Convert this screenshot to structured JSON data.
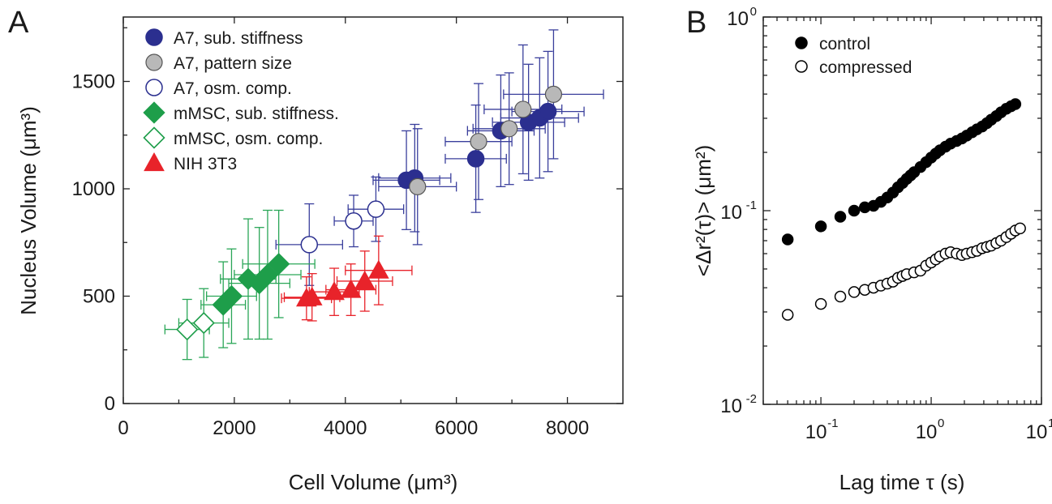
{
  "panels": {
    "a_letter": "A",
    "b_letter": "B"
  },
  "chart_data": [
    {
      "type": "scatter",
      "panel": "A",
      "xlabel": "Cell Volume (μm³)",
      "ylabel": "Nucleus Volume (μm³)",
      "xlim": [
        0,
        9000
      ],
      "ylim": [
        0,
        1800
      ],
      "xticks": [
        0,
        2000,
        4000,
        6000,
        8000
      ],
      "xtick_labels": [
        "0",
        "2000",
        "4000",
        "6000",
        "8000"
      ],
      "yticks": [
        0,
        500,
        1000,
        1500
      ],
      "ytick_labels": [
        "0",
        "500",
        "1000",
        "1500"
      ],
      "grid": false,
      "legend_position": "top-left",
      "series": [
        {
          "name": "A7, sub. stiffness",
          "marker": "circle-filled",
          "color": "#2b2f8f",
          "bar_color": "#3a3f9c",
          "points": [
            {
              "x": 5100,
              "y": 1040,
              "xerr": 600,
              "yerr": 230
            },
            {
              "x": 5250,
              "y": 1050,
              "xerr": 650,
              "yerr": 250
            },
            {
              "x": 6350,
              "y": 1140,
              "xerr": 550,
              "yerr": 250
            },
            {
              "x": 6800,
              "y": 1270,
              "xerr": 600,
              "yerr": 260
            },
            {
              "x": 7300,
              "y": 1310,
              "xerr": 650,
              "yerr": 270
            },
            {
              "x": 7500,
              "y": 1330,
              "xerr": 700,
              "yerr": 280
            },
            {
              "x": 7650,
              "y": 1360,
              "xerr": 650,
              "yerr": 280
            }
          ]
        },
        {
          "name": "A7, pattern size",
          "marker": "circle-gray",
          "color": "#b8b8b8",
          "bar_color": "#3a3f9c",
          "points": [
            {
              "x": 5300,
              "y": 1010,
              "xerr": 700,
              "yerr": 270
            },
            {
              "x": 6400,
              "y": 1220,
              "xerr": 600,
              "yerr": 270
            },
            {
              "x": 6950,
              "y": 1280,
              "xerr": 650,
              "yerr": 260
            },
            {
              "x": 7200,
              "y": 1370,
              "xerr": 700,
              "yerr": 300
            },
            {
              "x": 7750,
              "y": 1440,
              "xerr": 900,
              "yerr": 300
            }
          ]
        },
        {
          "name": "A7, osm. comp.",
          "marker": "circle-open",
          "color": "#2b2f8f",
          "bar_color": "#3a3f9c",
          "points": [
            {
              "x": 3350,
              "y": 740,
              "xerr": 600,
              "yerr": 190
            },
            {
              "x": 4150,
              "y": 850,
              "xerr": 350,
              "yerr": 120
            },
            {
              "x": 4550,
              "y": 905,
              "xerr": 500,
              "yerr": 150
            }
          ]
        },
        {
          "name": "mMSC, sub. stiffness.",
          "marker": "diamond-filled",
          "color": "#1e9e4a",
          "bar_color": "#2aa657",
          "points": [
            {
              "x": 1800,
              "y": 460,
              "xerr": 400,
              "yerr": 200
            },
            {
              "x": 1950,
              "y": 500,
              "xerr": 450,
              "yerr": 220
            },
            {
              "x": 2250,
              "y": 580,
              "xerr": 500,
              "yerr": 280
            },
            {
              "x": 2450,
              "y": 560,
              "xerr": 550,
              "yerr": 260
            },
            {
              "x": 2600,
              "y": 600,
              "xerr": 600,
              "yerr": 300
            },
            {
              "x": 2800,
              "y": 650,
              "xerr": 650,
              "yerr": 250
            }
          ]
        },
        {
          "name": "mMSC, osm. comp.",
          "marker": "diamond-open",
          "color": "#1e9e4a",
          "bar_color": "#2aa657",
          "points": [
            {
              "x": 1150,
              "y": 345,
              "xerr": 400,
              "yerr": 140
            },
            {
              "x": 1450,
              "y": 375,
              "xerr": 450,
              "yerr": 160
            }
          ]
        },
        {
          "name": "NIH 3T3",
          "marker": "triangle-filled",
          "color": "#e8232a",
          "bar_color": "#e8232a",
          "points": [
            {
              "x": 3300,
              "y": 490,
              "xerr": 450,
              "yerr": 100
            },
            {
              "x": 3400,
              "y": 495,
              "xerr": 500,
              "yerr": 110
            },
            {
              "x": 3800,
              "y": 520,
              "xerr": 450,
              "yerr": 110
            },
            {
              "x": 4100,
              "y": 530,
              "xerr": 450,
              "yerr": 120
            },
            {
              "x": 4350,
              "y": 570,
              "xerr": 500,
              "yerr": 140
            },
            {
              "x": 4600,
              "y": 620,
              "xerr": 600,
              "yerr": 160
            }
          ]
        }
      ]
    },
    {
      "type": "scatter",
      "panel": "B",
      "xlabel": "Lag time τ (s)",
      "ylabel": "<Δr²(τ)> (μm²)",
      "xscale": "log",
      "yscale": "log",
      "xlim": [
        0.03,
        10
      ],
      "ylim": [
        0.01,
        1
      ],
      "xtick_labels": [
        {
          "base": "10",
          "exp": "-1",
          "value": 0.1
        },
        {
          "base": "10",
          "exp": "0",
          "value": 1
        },
        {
          "base": "10",
          "exp": "1",
          "value": 10
        }
      ],
      "ytick_labels": [
        {
          "base": "10",
          "exp": "-2",
          "value": 0.01
        },
        {
          "base": "10",
          "exp": "-1",
          "value": 0.1
        },
        {
          "base": "10",
          "exp": "0",
          "value": 1
        }
      ],
      "grid": false,
      "legend_position": "top-left",
      "series": [
        {
          "name": "control",
          "marker": "circle-filled",
          "color": "#000000",
          "points": [
            [
              0.05,
              0.071
            ],
            [
              0.1,
              0.083
            ],
            [
              0.15,
              0.093
            ],
            [
              0.2,
              0.1
            ],
            [
              0.25,
              0.104
            ],
            [
              0.3,
              0.106
            ],
            [
              0.35,
              0.111
            ],
            [
              0.4,
              0.117
            ],
            [
              0.45,
              0.124
            ],
            [
              0.5,
              0.132
            ],
            [
              0.55,
              0.139
            ],
            [
              0.6,
              0.146
            ],
            [
              0.65,
              0.152
            ],
            [
              0.7,
              0.158
            ],
            [
              0.8,
              0.168
            ],
            [
              0.9,
              0.178
            ],
            [
              1.0,
              0.188
            ],
            [
              1.1,
              0.197
            ],
            [
              1.2,
              0.205
            ],
            [
              1.35,
              0.214
            ],
            [
              1.5,
              0.222
            ],
            [
              1.7,
              0.229
            ],
            [
              1.9,
              0.236
            ],
            [
              2.1,
              0.244
            ],
            [
              2.35,
              0.254
            ],
            [
              2.6,
              0.263
            ],
            [
              2.9,
              0.272
            ],
            [
              3.2,
              0.283
            ],
            [
              3.5,
              0.295
            ],
            [
              3.9,
              0.308
            ],
            [
              4.3,
              0.322
            ],
            [
              4.8,
              0.336
            ],
            [
              5.3,
              0.346
            ],
            [
              5.8,
              0.355
            ]
          ]
        },
        {
          "name": "compressed",
          "marker": "circle-open",
          "color": "#000000",
          "points": [
            [
              0.05,
              0.029
            ],
            [
              0.1,
              0.033
            ],
            [
              0.15,
              0.036
            ],
            [
              0.2,
              0.038
            ],
            [
              0.25,
              0.039
            ],
            [
              0.3,
              0.04
            ],
            [
              0.35,
              0.041
            ],
            [
              0.4,
              0.042
            ],
            [
              0.45,
              0.043
            ],
            [
              0.5,
              0.045
            ],
            [
              0.55,
              0.046
            ],
            [
              0.6,
              0.047
            ],
            [
              0.7,
              0.048
            ],
            [
              0.8,
              0.049
            ],
            [
              0.9,
              0.052
            ],
            [
              1.0,
              0.054
            ],
            [
              1.1,
              0.056
            ],
            [
              1.2,
              0.058
            ],
            [
              1.35,
              0.06
            ],
            [
              1.5,
              0.061
            ],
            [
              1.7,
              0.06
            ],
            [
              1.9,
              0.059
            ],
            [
              2.1,
              0.06
            ],
            [
              2.35,
              0.061
            ],
            [
              2.6,
              0.062
            ],
            [
              2.9,
              0.064
            ],
            [
              3.2,
              0.065
            ],
            [
              3.5,
              0.066
            ],
            [
              3.9,
              0.068
            ],
            [
              4.3,
              0.07
            ],
            [
              4.8,
              0.073
            ],
            [
              5.3,
              0.076
            ],
            [
              5.8,
              0.079
            ],
            [
              6.4,
              0.081
            ]
          ]
        }
      ]
    }
  ]
}
